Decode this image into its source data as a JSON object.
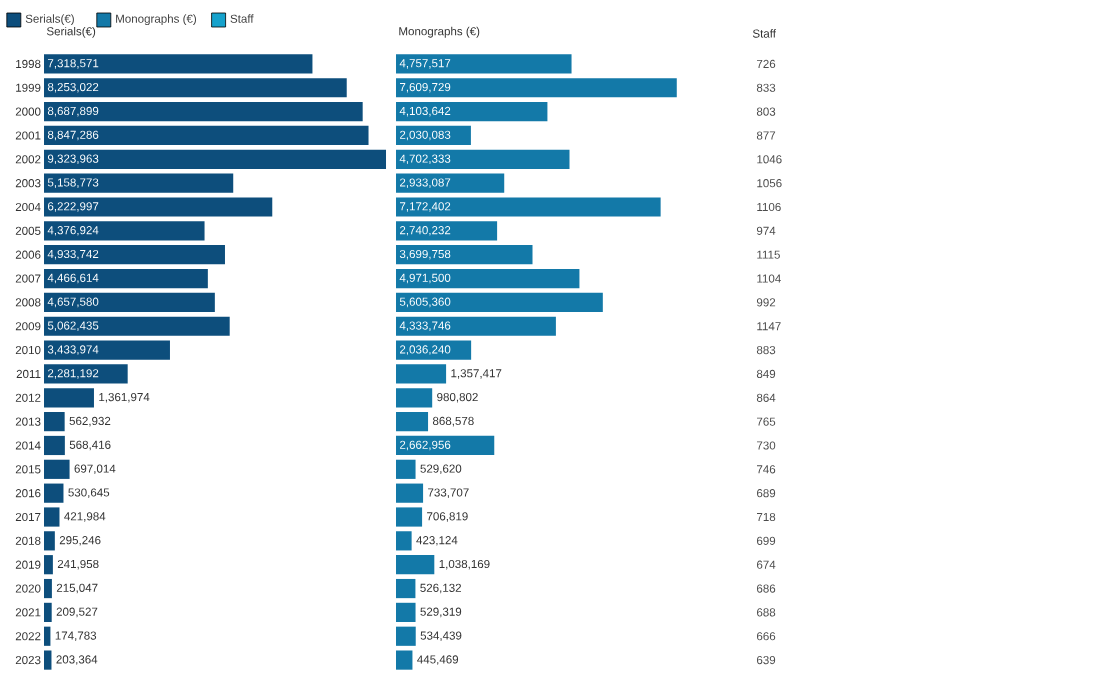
{
  "chart_data": [
    {
      "type": "bar",
      "orientation": "horizontal",
      "title": "Serials(€)",
      "legend": "top left",
      "tick_labels": "y",
      "categories": [
        "1998",
        "1999",
        "2000",
        "2001",
        "2002",
        "2003",
        "2004",
        "2005",
        "2006",
        "2007",
        "2008",
        "2009",
        "2010",
        "2011",
        "2012",
        "2013",
        "2014",
        "2015",
        "2016",
        "2017",
        "2018",
        "2019",
        "2020",
        "2021",
        "2022",
        "2023"
      ],
      "series": [
        {
          "name": "Serials(€)",
          "color": "#0d4e7c",
          "values": [
            7318571,
            8253022,
            8687899,
            8847286,
            9323963,
            5158773,
            6222997,
            4376924,
            4933742,
            4466614,
            4657580,
            5062435,
            3433974,
            2281192,
            1361974,
            562932,
            568416,
            697014,
            530645,
            421984,
            295246,
            241958,
            215047,
            209527,
            174783,
            203364
          ],
          "value_labels": [
            "7,318,571",
            "8,253,022",
            "8,687,899",
            "8,847,286",
            "9,323,963",
            "5,158,773",
            "6,222,997",
            "4,376,924",
            "4,933,742",
            "4,466,614",
            "4,657,580",
            "5,062,435",
            "3,433,974",
            "2,281,192",
            "1,361,974",
            "562,932",
            "568,416",
            "697,014",
            "530,645",
            "421,984",
            "295,246",
            "241,958",
            "215,047",
            "209,527",
            "174,783",
            "203,364"
          ]
        }
      ]
    },
    {
      "type": "bar",
      "orientation": "horizontal",
      "title": "Monographs (€)",
      "legend": "top left",
      "tick_labels": false,
      "categories": [
        "1998",
        "1999",
        "2000",
        "2001",
        "2002",
        "2003",
        "2004",
        "2005",
        "2006",
        "2007",
        "2008",
        "2009",
        "2010",
        "2011",
        "2012",
        "2013",
        "2014",
        "2015",
        "2016",
        "2017",
        "2018",
        "2019",
        "2020",
        "2021",
        "2022",
        "2023"
      ],
      "series": [
        {
          "name": "Monographs (€)",
          "color": "#1379a8",
          "values": [
            4757517,
            7609729,
            4103642,
            2030083,
            4702333,
            2933087,
            7172402,
            2740232,
            3699758,
            4971500,
            5605360,
            4333746,
            2036240,
            1357417,
            980802,
            868578,
            2662956,
            529620,
            733707,
            706819,
            423124,
            1038169,
            526132,
            529319,
            534439,
            445469
          ],
          "value_labels": [
            "4,757,517",
            "7,609,729",
            "4,103,642",
            "2,030,083",
            "4,702,333",
            "2,933,087",
            "7,172,402",
            "2,740,232",
            "3,699,758",
            "4,971,500",
            "5,605,360",
            "4,333,746",
            "2,036,240",
            "1,357,417",
            "980,802",
            "868,578",
            "2,662,956",
            "529,620",
            "733,707",
            "706,819",
            "423,124",
            "1,038,169",
            "526,132",
            "529,319",
            "534,439",
            "445,469"
          ]
        }
      ]
    },
    {
      "type": "other",
      "title": "Staff",
      "legend": "top left",
      "data_labels": true,
      "series": [
        {
          "name": "Staff",
          "color": "#16a2cc",
          "values": [
            726,
            833,
            803,
            877,
            1046,
            1056,
            1106,
            974,
            1115,
            1104,
            992,
            1147,
            883,
            849,
            864,
            765,
            730,
            746,
            689,
            718,
            699,
            674,
            686,
            688,
            666,
            639
          ]
        }
      ]
    }
  ]
}
